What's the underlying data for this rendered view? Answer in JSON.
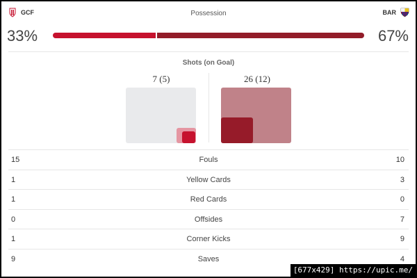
{
  "header": {
    "home_team": "GCF",
    "away_team": "BAR",
    "possession_title": "Possession"
  },
  "possession": {
    "home_pct_label": "33%",
    "away_pct_label": "67%",
    "home_share": 0.33,
    "away_share": 0.67,
    "home_color": "#c6122e",
    "away_color": "#921c29"
  },
  "shots": {
    "title": "Shots (on Goal)",
    "home_label": "7 (5)",
    "away_label": "26 (12)",
    "home_total": 7,
    "home_on_goal": 5,
    "away_total": 26,
    "away_on_goal": 12
  },
  "stats": [
    {
      "label": "Fouls",
      "home": "15",
      "away": "10"
    },
    {
      "label": "Yellow Cards",
      "home": "1",
      "away": "3"
    },
    {
      "label": "Red Cards",
      "home": "1",
      "away": "0"
    },
    {
      "label": "Offsides",
      "home": "0",
      "away": "7"
    },
    {
      "label": "Corner Kicks",
      "home": "1",
      "away": "9"
    },
    {
      "label": "Saves",
      "home": "9",
      "away": "4"
    }
  ],
  "watermark": "[677x429] https://upic.me/",
  "icons": {
    "home_crest": "granada-crest-icon",
    "away_crest": "barcelona-crest-icon"
  }
}
